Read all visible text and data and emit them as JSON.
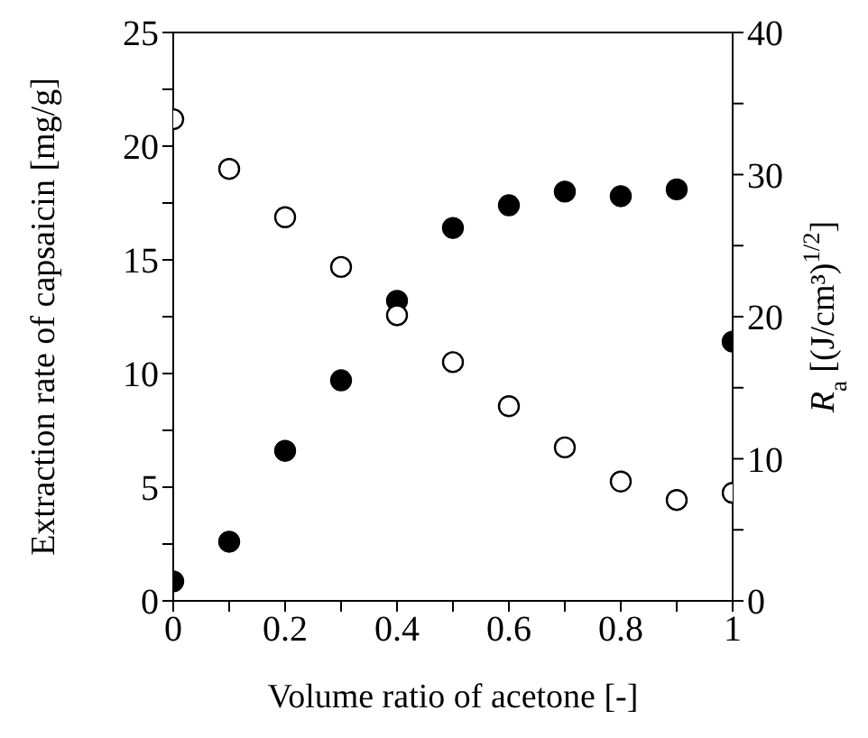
{
  "chart_data": {
    "type": "scatter",
    "xlabel": "Volume ratio of acetone [-]",
    "ylabel": "Extraction rate of  capsaicin [mg/g]",
    "y2label": "R$_{a}$ [(J/cm³)$^{1/2}$]",
    "x": [
      0,
      0.1,
      0.2,
      0.3,
      0.4,
      0.5,
      0.6,
      0.7,
      0.8,
      0.9,
      1
    ],
    "series": [
      {
        "color": "#000000",
        "values": [
          0.86,
          2.6,
          6.6,
          9.7,
          13.2,
          16.4,
          17.4,
          18.0,
          17.8,
          18.1,
          11.4
        ]
      },
      {
        "color": "#ffffff",
        "axis": "y2",
        "values": [
          33.9,
          30.4,
          27.0,
          23.5,
          20.1,
          16.8,
          13.7,
          10.8,
          8.4,
          7.1,
          7.6
        ]
      }
    ],
    "xlim": [
      0,
      1
    ],
    "xticks": [
      0,
      {
        "value": 0.1,
        "label": null
      },
      0.2,
      {
        "value": 0.3,
        "label": null
      },
      0.4,
      {
        "value": 0.5,
        "label": null
      },
      0.6,
      {
        "value": 0.7,
        "label": null
      },
      0.8,
      {
        "value": 0.9,
        "label": null
      },
      1
    ],
    "ylim": [
      0,
      25
    ],
    "yticks": [
      0,
      {
        "value": 2.5,
        "label": null
      },
      5,
      {
        "value": 7.5,
        "label": null
      },
      10,
      {
        "value": 12.5,
        "label": null
      },
      15,
      {
        "value": 17.5,
        "label": null
      },
      20,
      {
        "value": 22.5,
        "label": null
      },
      25
    ],
    "y2lim": [
      0,
      40
    ],
    "y2ticks": [
      0,
      {
        "value": 5,
        "label": null
      },
      10,
      {
        "value": 15,
        "label": null
      },
      20,
      {
        "value": 25,
        "label": null
      },
      30,
      {
        "value": 35,
        "label": null
      },
      40
    ],
    "marker": "circle"
  }
}
